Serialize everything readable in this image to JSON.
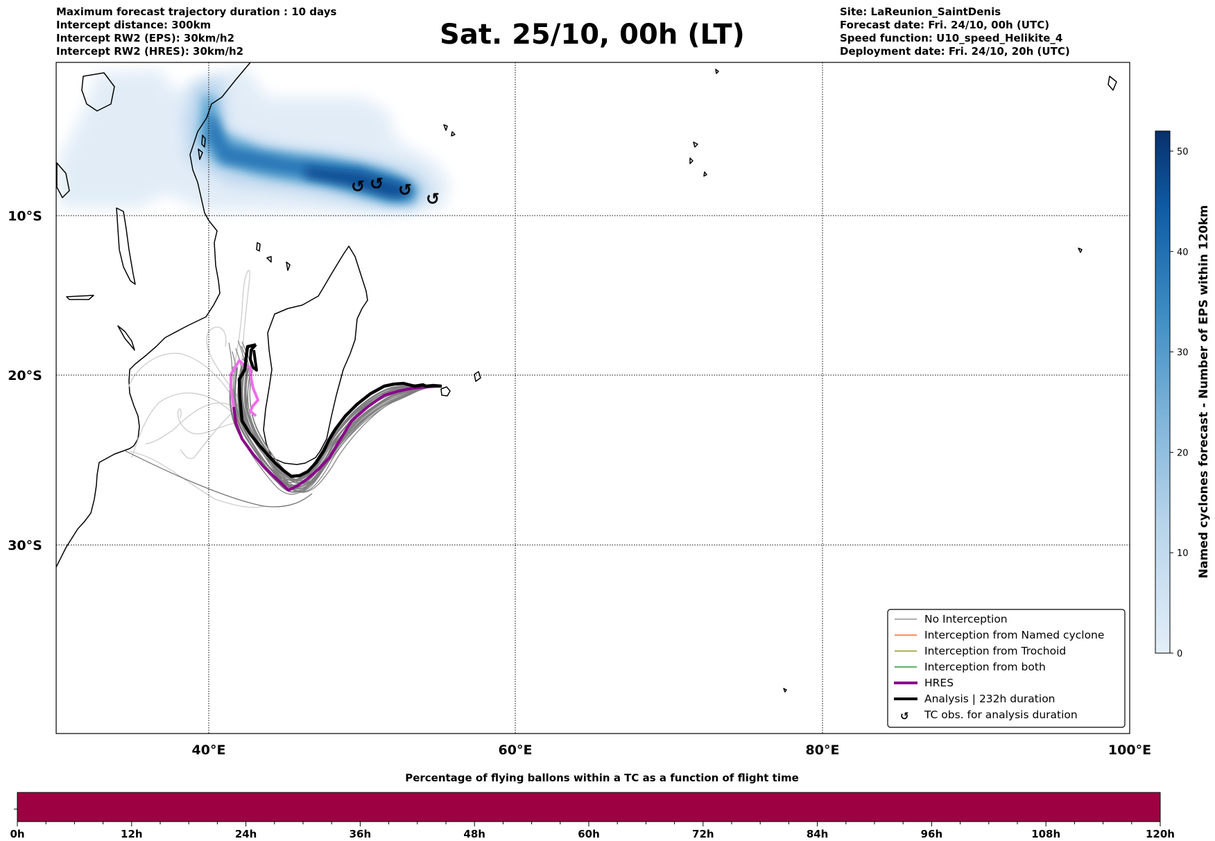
{
  "header": {
    "left_lines": [
      "Maximum forecast trajectory duration : 10 days",
      "Intercept distance: 300km",
      "Intercept RW2 (EPS):  30km/h2",
      "Intercept RW2 (HRES): 30km/h2"
    ],
    "title": "Sat. 25/10, 00h (LT)",
    "right_lines": [
      "Site: LaReunion_SaintDenis",
      "Forecast date: Fri. 24/10, 00h (UTC)",
      "Speed function: U10_speed_Helikite_4",
      "Deployment date: Fri. 24/10, 20h (UTC)"
    ]
  },
  "map": {
    "lon_labels": [
      "40°E",
      "60°E",
      "80°E",
      "100°E"
    ],
    "lat_labels": [
      "10°S",
      "20°S",
      "30°S"
    ],
    "tc_symbol": "↺"
  },
  "legend": {
    "items": [
      {
        "label": "No Interception",
        "color": "#7f7f7f"
      },
      {
        "label": "Interception from Named cyclone",
        "color": "#ff4500"
      },
      {
        "label": "Interception from Trochoid",
        "color": "#808000"
      },
      {
        "label": "Interception from both",
        "color": "#008000"
      },
      {
        "label": "HRES",
        "color": "#8b008b"
      },
      {
        "label": "Analysis | 232h duration",
        "color": "#000000"
      },
      {
        "label": "TC obs. for analysis duration",
        "color": "#000000"
      }
    ]
  },
  "colorbar": {
    "label": "Named cyclones forecast - Number of EPS within 120km",
    "ticks": [
      "0",
      "10",
      "20",
      "30",
      "40",
      "50"
    ],
    "min": 0,
    "max": 52
  },
  "time_bar": {
    "title": "Percentage of flying ballons within a TC as a function of flight time",
    "ticks": [
      "0h",
      "12h",
      "24h",
      "36h",
      "48h",
      "60h",
      "72h",
      "84h",
      "96h",
      "108h",
      "120h"
    ],
    "fill_color": "#9e0142"
  }
}
